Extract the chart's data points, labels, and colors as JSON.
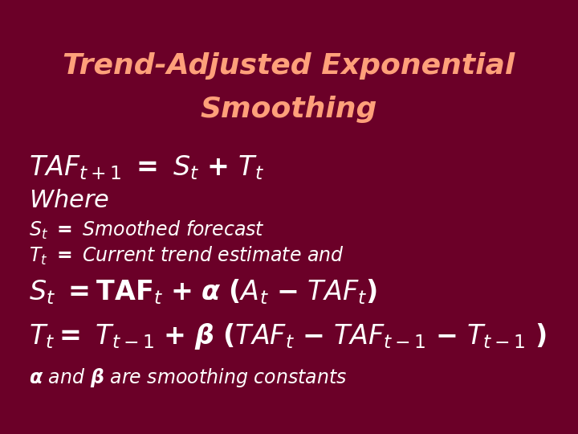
{
  "bg_color": "#6B0028",
  "title_color": "#FFA07A",
  "body_color": "#FFFFFF",
  "figsize": [
    7.2,
    5.4
  ],
  "dpi": 100,
  "title_fontsize": 26,
  "line1_fontsize": 24,
  "where_fontsize": 22,
  "small_fontsize": 17,
  "formula_fontsize": 24,
  "last_fontsize": 17
}
